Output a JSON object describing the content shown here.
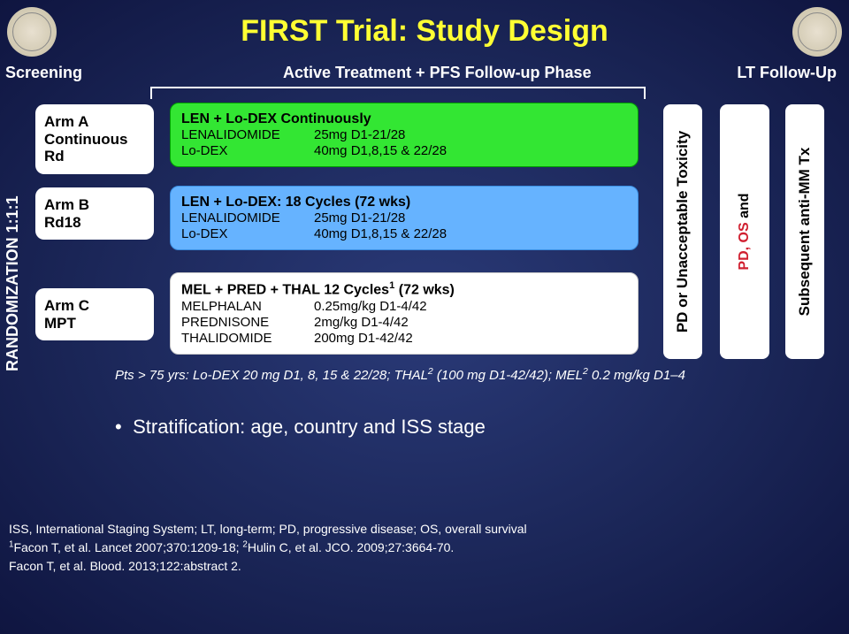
{
  "title": "FIRST Trial: Study Design",
  "phases": {
    "screening": "Screening",
    "active": "Active Treatment + PFS Follow-up Phase",
    "lt": "LT Follow-Up"
  },
  "randomization_label": "RANDOMIZATION 1:1:1",
  "arms": {
    "a": {
      "line1": "Arm A",
      "line2": "Continuous Rd"
    },
    "b": {
      "line1": "Arm B",
      "line2": "Rd18"
    },
    "c": {
      "line1": "Arm C",
      "line2": "MPT"
    }
  },
  "treatments": {
    "a": {
      "header": "LEN + Lo-DEX Continuously",
      "rows": [
        {
          "drug": "LENALIDOMIDE",
          "dose": "25mg D1-21/28"
        },
        {
          "drug": "Lo-DEX",
          "dose": "40mg D1,8,15 & 22/28"
        }
      ],
      "bg": "#33e633"
    },
    "b": {
      "header": "LEN + Lo-DEX:  18 Cycles (72 wks)",
      "rows": [
        {
          "drug": "LENALIDOMIDE",
          "dose": "25mg D1-21/28"
        },
        {
          "drug": "Lo-DEX",
          "dose": "40mg D1,8,15 & 22/28"
        }
      ],
      "bg": "#66b3ff"
    },
    "c": {
      "header_pre": "MEL + PRED + THAL 12 Cycles",
      "header_sup": "1",
      "header_post": " (72 wks)",
      "rows": [
        {
          "drug": "MELPHALAN",
          "dose": "0.25mg/kg D1-4/42"
        },
        {
          "drug": "PREDNISONE",
          "dose": "2mg/kg D1-4/42"
        },
        {
          "drug": "THALIDOMIDE",
          "dose": "200mg D1-42/42"
        }
      ],
      "bg": "#ffffff"
    }
  },
  "vertical_boxes": {
    "pd": "PD or Unacceptable Toxicity",
    "out_prefix": "PD, OS",
    "out_and": " and",
    "sub": "Subsequent anti-MM Tx"
  },
  "footnote_pts": {
    "pre": "Pts > 75 yrs: Lo-DEX 20 mg D1, 8, 15 & 22/28; THAL",
    "sup1": "2",
    "mid": " (100 mg D1-42/42); MEL",
    "sup2": "2",
    "post": " 0.2 mg/kg D1–4"
  },
  "stratification": "Stratification: age, country and ISS stage",
  "legend": {
    "l1": "ISS, International Staging System; LT, long-term; PD, progressive disease; OS, overall survival",
    "l2_pre": "",
    "l2_sup1": "1",
    "l2_mid": "Facon T, et al. Lancet 2007;370:1209-18; ",
    "l2_sup2": "2",
    "l2_post": "Hulin C, et al. JCO. 2009;27:3664-70.",
    "l3": "Facon T, et al. Blood. 2013;122:abstract 2."
  },
  "colors": {
    "title": "#ffff33",
    "bg_inner": "#2a3a78",
    "bg_outer": "#1a2556",
    "red": "#d02030"
  }
}
